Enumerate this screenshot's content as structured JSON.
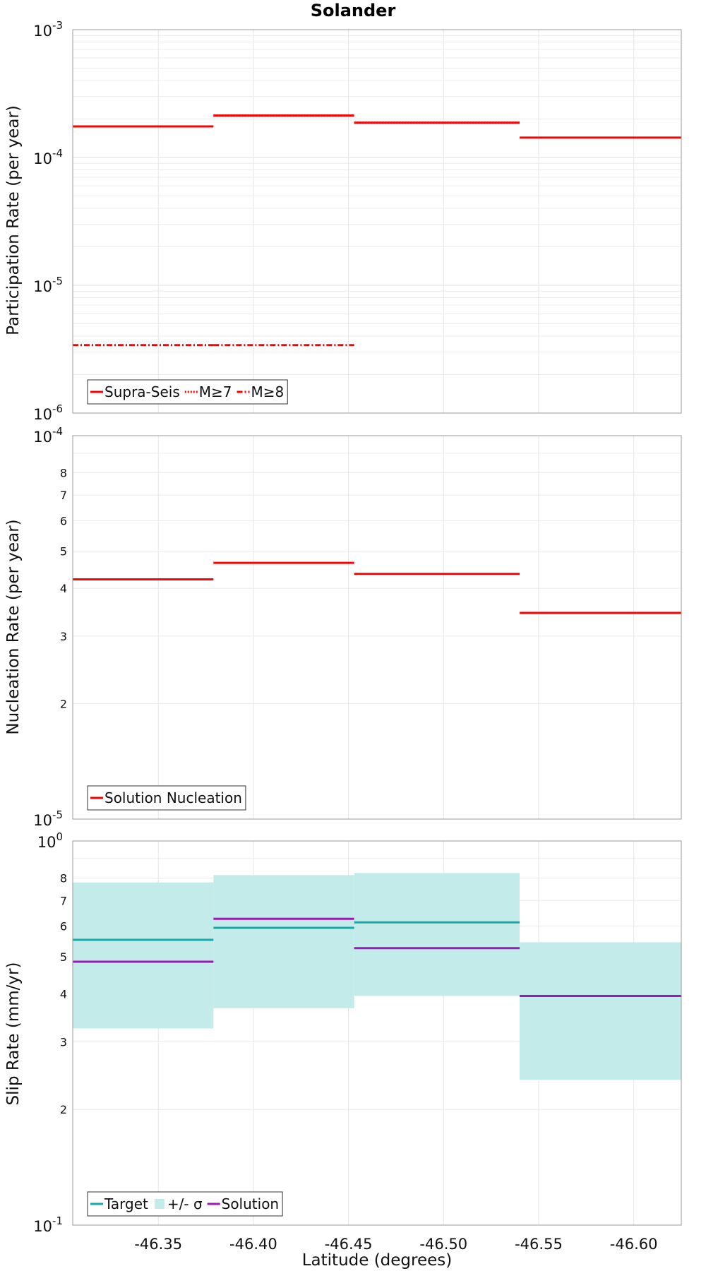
{
  "chart_data": {
    "title": "Solander",
    "xlabel": "Latitude (degrees)",
    "xlim": [
      -46.305,
      -46.625
    ],
    "xticks": [
      "-46.35",
      "-46.40",
      "-46.45",
      "-46.50",
      "-46.55",
      "-46.60"
    ],
    "xtick_values": [
      -46.35,
      -46.4,
      -46.45,
      -46.5,
      -46.55,
      -46.6
    ],
    "sections": [
      {
        "start": -46.305,
        "end": -46.379
      },
      {
        "start": -46.379,
        "end": -46.453
      },
      {
        "start": -46.453,
        "end": -46.54
      },
      {
        "start": -46.54,
        "end": -46.625
      }
    ],
    "panels": [
      {
        "type": "line",
        "ylabel": "Participation Rate (per year)",
        "yscale": "log",
        "ylim": [
          1e-06,
          0.001
        ],
        "ytick_major": [
          {
            "base": "10",
            "exp": "-6"
          },
          {
            "base": "10",
            "exp": "-5"
          },
          {
            "base": "10",
            "exp": "-4"
          },
          {
            "base": "10",
            "exp": "-3"
          }
        ],
        "ytick_minor_labels": [],
        "series": [
          {
            "name": "Supra-Seis",
            "color": "#ff0000",
            "style": "solid",
            "values": [
              0.000175,
              0.000213,
              0.000187,
              0.000143
            ]
          },
          {
            "name": "M≥7",
            "color": "#ff0000",
            "style": "dotted",
            "values": [
              0.000175,
              0.000213,
              0.000187,
              null
            ]
          },
          {
            "name": "M≥8",
            "color": "#ff0000",
            "style": "dashdot",
            "values": [
              3.4e-06,
              3.4e-06,
              null,
              null
            ]
          }
        ],
        "bands": []
      },
      {
        "type": "line",
        "ylabel": "Nucleation Rate (per year)",
        "yscale": "log",
        "ylim": [
          1e-05,
          0.0001
        ],
        "ytick_major": [
          {
            "base": "10",
            "exp": "-5"
          },
          {
            "base": "10",
            "exp": "-4"
          }
        ],
        "ytick_minor_labels": [
          "2",
          "3",
          "4",
          "5",
          "6",
          "7",
          "8"
        ],
        "series": [
          {
            "name": "Solution Nucleation",
            "color": "#ff0000",
            "style": "solid",
            "values": [
              4.22e-05,
              4.66e-05,
              4.36e-05,
              3.45e-05
            ]
          }
        ],
        "bands": []
      },
      {
        "type": "line",
        "ylabel": "Slip Rate (mm/yr)",
        "yscale": "log",
        "ylim": [
          0.1,
          1
        ],
        "ytick_major": [
          {
            "base": "10",
            "exp": "-1"
          },
          {
            "base": "10",
            "exp": "0"
          }
        ],
        "ytick_minor_labels": [
          "2",
          "3",
          "4",
          "5",
          "6",
          "7",
          "8"
        ],
        "series": [
          {
            "name": "Target",
            "color": "#17a8a8",
            "style": "solid",
            "values": [
              0.553,
              0.594,
              0.614,
              0.395
            ]
          },
          {
            "name": "Solution",
            "color": "#9b19b5",
            "style": "solid",
            "values": [
              0.485,
              0.627,
              0.526,
              0.395
            ]
          }
        ],
        "bands": [
          {
            "name": "+/- σ",
            "color": "#c3ebe9",
            "lower": [
              0.325,
              0.367,
              0.395,
              0.239
            ],
            "upper": [
              0.78,
              0.815,
              0.825,
              0.545
            ]
          }
        ]
      }
    ]
  }
}
